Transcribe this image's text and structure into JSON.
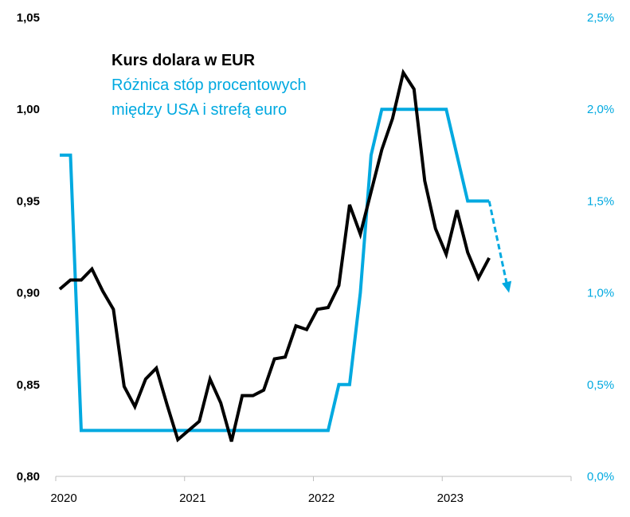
{
  "chart_data": {
    "type": "line",
    "legend": [
      "Kurs dolara w EUR",
      "Różnica stóp procentowych",
      "między USA i strefą euro"
    ],
    "legend_placement": "top-left",
    "grid": false,
    "colors": {
      "usd_eur": "#000000",
      "rate_diff": "#00a9e0"
    },
    "x_tick_labels": [
      "2020",
      "2021",
      "2022",
      "2023"
    ],
    "x_range": [
      "2020-01",
      "2024-01"
    ],
    "y_left": {
      "range": [
        0.8,
        1.05
      ],
      "tick_labels": [
        "0,80",
        "0,85",
        "0,90",
        "0,95",
        "1,00",
        "1,05"
      ]
    },
    "y_right": {
      "range": [
        0.0,
        2.5
      ],
      "tick_labels": [
        "0,0%",
        "0,5%",
        "1,0%",
        "1,5%",
        "2,0%",
        "2,5%"
      ]
    },
    "months": [
      "2020-01",
      "2020-02",
      "2020-03",
      "2020-04",
      "2020-05",
      "2020-06",
      "2020-07",
      "2020-08",
      "2020-09",
      "2020-10",
      "2020-11",
      "2020-12",
      "2021-01",
      "2021-02",
      "2021-03",
      "2021-04",
      "2021-05",
      "2021-06",
      "2021-07",
      "2021-08",
      "2021-09",
      "2021-10",
      "2021-11",
      "2021-12",
      "2022-01",
      "2022-02",
      "2022-03",
      "2022-04",
      "2022-05",
      "2022-06",
      "2022-07",
      "2022-08",
      "2022-09",
      "2022-10",
      "2022-11",
      "2022-12",
      "2023-01",
      "2023-02",
      "2023-03",
      "2023-04",
      "2023-05"
    ],
    "series": [
      {
        "axis": "left",
        "values": [
          0.902,
          0.907,
          0.907,
          0.913,
          0.901,
          0.891,
          0.849,
          0.838,
          0.853,
          0.859,
          0.839,
          0.82,
          0.825,
          0.83,
          0.853,
          0.84,
          0.819,
          0.844,
          0.844,
          0.847,
          0.864,
          0.865,
          0.882,
          0.88,
          0.891,
          0.892,
          0.904,
          0.948,
          0.932,
          0.955,
          0.978,
          0.995,
          1.02,
          1.011,
          0.961,
          0.935,
          0.921,
          0.945,
          0.922,
          0.908,
          0.919
        ]
      },
      {
        "axis": "right",
        "values": [
          1.75,
          1.75,
          0.25,
          0.25,
          0.25,
          0.25,
          0.25,
          0.25,
          0.25,
          0.25,
          0.25,
          0.25,
          0.25,
          0.25,
          0.25,
          0.25,
          0.25,
          0.25,
          0.25,
          0.25,
          0.25,
          0.25,
          0.25,
          0.25,
          0.25,
          0.25,
          0.5,
          0.5,
          1.0,
          1.75,
          2.0,
          2.0,
          2.0,
          2.0,
          2.0,
          2.0,
          2.0,
          1.75,
          1.5,
          1.5,
          1.5
        ]
      }
    ],
    "projection": {
      "axis": "right",
      "from": {
        "month": "2023-05",
        "value": 1.5
      },
      "to": {
        "month": "2023-07",
        "value": 1.0
      },
      "style": "dashed-arrow"
    }
  }
}
